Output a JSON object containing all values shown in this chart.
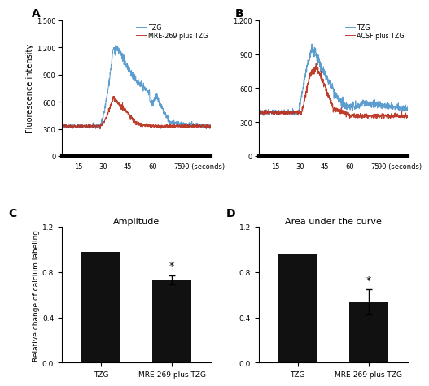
{
  "panel_A": {
    "panel_letter": "A",
    "ylabel": "Fluorescence intensity",
    "xtick_positions": [
      15,
      30,
      45,
      60,
      75,
      90
    ],
    "xtick_labels": [
      "15",
      "30",
      "45",
      "60",
      "75",
      "90 (seconds)"
    ],
    "xlim": [
      5,
      95
    ],
    "ylim": [
      0,
      1500
    ],
    "yticks": [
      0,
      300,
      600,
      900,
      1200,
      1500
    ],
    "blue_label": "TZG",
    "red_label": "MRE-269 plus TZG",
    "blue_color": "#5599cc",
    "red_color": "#bb3322"
  },
  "panel_B": {
    "panel_letter": "B",
    "xtick_positions": [
      15,
      30,
      45,
      60,
      75,
      90
    ],
    "xtick_labels": [
      "15",
      "30",
      "45",
      "60",
      "75",
      "90 (seconds)"
    ],
    "xlim": [
      5,
      95
    ],
    "ylim": [
      0,
      1200
    ],
    "yticks": [
      0,
      300,
      600,
      900,
      1200
    ],
    "blue_label": "TZG",
    "red_label": "ACSF plus TZG",
    "blue_color": "#5599cc",
    "red_color": "#bb3322"
  },
  "panel_C": {
    "title": "Amplitude",
    "panel_letter": "C",
    "ylabel": "Relative change of calcium labeling",
    "categories": [
      "TZG",
      "MRE-269 plus TZG"
    ],
    "values": [
      0.975,
      0.73
    ],
    "errors": [
      0.0,
      0.04
    ],
    "star_text": "*",
    "bar_color": "#111111",
    "ylim": [
      0,
      1.2
    ],
    "yticks": [
      0.0,
      0.4,
      0.8,
      1.2
    ]
  },
  "panel_D": {
    "title": "Area under the curve",
    "panel_letter": "D",
    "categories": [
      "TZG",
      "MRE-269 plus TZG"
    ],
    "values": [
      0.96,
      0.535
    ],
    "errors": [
      0.0,
      0.11
    ],
    "star_text": "*",
    "bar_color": "#111111",
    "ylim": [
      0,
      1.2
    ],
    "yticks": [
      0.0,
      0.4,
      0.8,
      1.2
    ]
  },
  "fig_background": "#ffffff"
}
